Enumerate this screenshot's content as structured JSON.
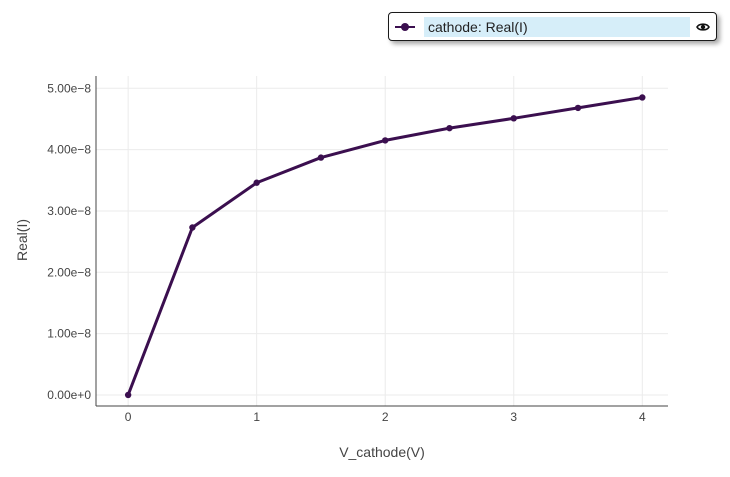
{
  "legend": {
    "label": "cathode: Real(I)",
    "highlight_color": "#d6eef9",
    "visibility_icon": "eye-icon"
  },
  "colors": {
    "series": "#3b0f4f",
    "axis": "#444444",
    "grid": "#ebebeb",
    "tick_text": "#444444"
  },
  "chart_data": {
    "type": "line",
    "title": "",
    "xlabel": "V_cathode(V)",
    "ylabel": "Real(I)",
    "xlim": [
      -0.25,
      4.2
    ],
    "ylim": [
      -1.8e-09,
      5.2e-08
    ],
    "grid": true,
    "legend_placement": "top-right",
    "x_ticks": [
      {
        "value": 0,
        "label": "0"
      },
      {
        "value": 1,
        "label": "1"
      },
      {
        "value": 2,
        "label": "2"
      },
      {
        "value": 3,
        "label": "3"
      },
      {
        "value": 4,
        "label": "4"
      }
    ],
    "y_ticks": [
      {
        "value": 0,
        "label": "0.00e+0"
      },
      {
        "value": 1e-08,
        "label": "1.00e−8"
      },
      {
        "value": 2e-08,
        "label": "2.00e−8"
      },
      {
        "value": 3e-08,
        "label": "3.00e−8"
      },
      {
        "value": 4e-08,
        "label": "4.00e−8"
      },
      {
        "value": 5e-08,
        "label": "5.00e−8"
      }
    ],
    "series": [
      {
        "name": "cathode: Real(I)",
        "x": [
          0,
          0.5,
          1,
          1.5,
          2,
          2.5,
          3,
          3.5,
          4
        ],
        "y": [
          0,
          2.73e-08,
          3.46e-08,
          3.87e-08,
          4.15e-08,
          4.35e-08,
          4.51e-08,
          4.68e-08,
          4.85e-08
        ]
      }
    ]
  }
}
